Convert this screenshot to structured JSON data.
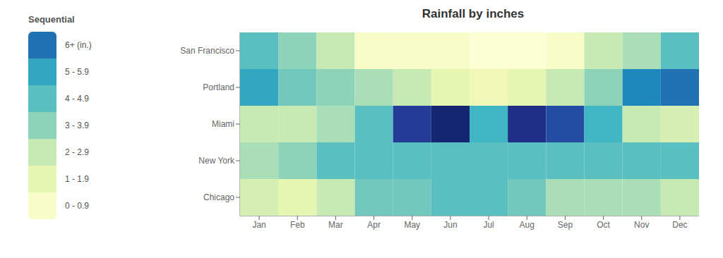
{
  "chart_data": {
    "type": "heatmap",
    "title": "Rainfall by inches",
    "categories": [
      "Jan",
      "Feb",
      "Mar",
      "Apr",
      "May",
      "Jun",
      "Jul",
      "Aug",
      "Sep",
      "Oct",
      "Nov",
      "Dec"
    ],
    "y_categories": [
      "San Francisco",
      "Portland",
      "Miami",
      "New York",
      "Chicago"
    ],
    "values": [
      [
        4.5,
        3.5,
        2.5,
        0.5,
        0.5,
        0.5,
        0.2,
        0.2,
        0.5,
        2.5,
        3.0,
        4.5
      ],
      [
        5.5,
        4.0,
        3.5,
        3.0,
        2.5,
        1.5,
        1.0,
        1.5,
        2.5,
        3.5,
        6.5,
        7.0
      ],
      [
        2.5,
        2.5,
        3.0,
        4.5,
        8.5,
        9.5,
        5.0,
        9.0,
        8.0,
        5.0,
        2.5,
        2.0
      ],
      [
        3.0,
        3.5,
        4.5,
        4.5,
        4.5,
        4.5,
        4.5,
        4.5,
        4.5,
        4.5,
        4.5,
        4.5
      ],
      [
        2.0,
        1.5,
        2.5,
        4.0,
        4.0,
        4.5,
        4.5,
        4.0,
        3.0,
        3.0,
        3.0,
        2.5
      ]
    ],
    "zlim": [
      0,
      10
    ],
    "color": "YlGnBu",
    "grid": false,
    "legend_title": "Sequential",
    "legend_items": [
      {
        "value": 7.0,
        "label": "6+ (in.)"
      },
      {
        "value": 5.5,
        "label": "5 - 5.9"
      },
      {
        "value": 4.5,
        "label": "4 - 4.9"
      },
      {
        "value": 3.5,
        "label": "3 - 3.9"
      },
      {
        "value": 2.5,
        "label": "2 - 2.9"
      },
      {
        "value": 1.5,
        "label": "1 - 1.9"
      },
      {
        "value": 0.5,
        "label": "0 - 0.9"
      }
    ]
  }
}
